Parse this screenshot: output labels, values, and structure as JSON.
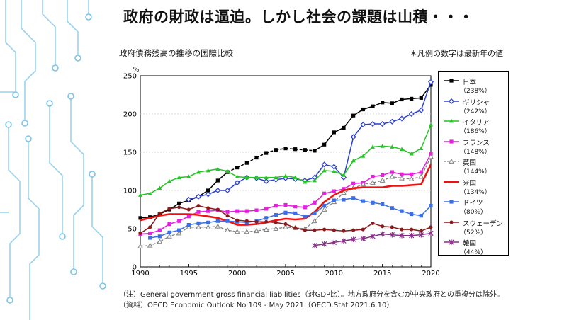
{
  "slide": {
    "title": "政府の財政は逼迫。しかし社会の課題は山積・・・"
  },
  "chart_data": {
    "type": "line",
    "title": "政府債務残高の推移の国際比較",
    "note": "＊凡例の数字は最新年の値",
    "ylabel": "%",
    "ylim": [
      0,
      250
    ],
    "xlim": [
      1990,
      2020
    ],
    "yticks": [
      0,
      50,
      100,
      150,
      200,
      250
    ],
    "xticks": [
      1990,
      1995,
      2000,
      2005,
      2010,
      2015,
      2020
    ],
    "grid": true,
    "legend_position": "right",
    "series": [
      {
        "key": "japan",
        "name": "日本",
        "latest": "（238%）",
        "color": "#000000",
        "marker": "square",
        "style": "solid-dashed",
        "x": [
          1990,
          1991,
          1992,
          1993,
          1994,
          1995,
          1996,
          1997,
          1998,
          1999,
          2000,
          2001,
          2002,
          2003,
          2004,
          2005,
          2006,
          2007,
          2008,
          2009,
          2010,
          2011,
          2012,
          2013,
          2014,
          2015,
          2016,
          2017,
          2018,
          2019,
          2020
        ],
        "y": [
          64,
          65,
          69,
          75,
          83,
          87,
          92,
          100,
          113,
          124,
          130,
          136,
          143,
          149,
          153,
          155,
          154,
          153,
          152,
          160,
          176,
          182,
          198,
          206,
          210,
          215,
          214,
          219,
          220,
          221,
          238
        ]
      },
      {
        "key": "greece",
        "name": "ギリシャ",
        "latest": "（242%）",
        "color": "#2b3fd0",
        "marker": "diamond-open",
        "style": "solid",
        "x": [
          1995,
          1996,
          1997,
          1998,
          1999,
          2000,
          2001,
          2002,
          2003,
          2004,
          2005,
          2006,
          2007,
          2008,
          2009,
          2010,
          2011,
          2012,
          2013,
          2014,
          2015,
          2016,
          2017,
          2018,
          2019,
          2020
        ],
        "y": [
          88,
          92,
          95,
          100,
          100,
          110,
          117,
          116,
          112,
          114,
          116,
          115,
          113,
          117,
          134,
          131,
          117,
          170,
          186,
          187,
          187,
          190,
          194,
          200,
          205,
          242
        ]
      },
      {
        "key": "italy",
        "name": "イタリア",
        "latest": "（186%）",
        "color": "#27c427",
        "marker": "triangle",
        "style": "solid",
        "x": [
          1990,
          1991,
          1992,
          1993,
          1994,
          1995,
          1996,
          1997,
          1998,
          1999,
          2000,
          2001,
          2002,
          2003,
          2004,
          2005,
          2006,
          2007,
          2008,
          2009,
          2010,
          2011,
          2012,
          2013,
          2014,
          2015,
          2016,
          2017,
          2018,
          2019,
          2020
        ],
        "y": [
          94,
          96,
          103,
          112,
          117,
          118,
          124,
          126,
          128,
          125,
          118,
          117,
          117,
          117,
          117,
          119,
          117,
          111,
          113,
          126,
          125,
          120,
          139,
          145,
          157,
          158,
          157,
          154,
          148,
          155,
          186
        ]
      },
      {
        "key": "france",
        "name": "フランス",
        "latest": "（148%）",
        "color": "#e81fe0",
        "marker": "square",
        "style": "solid",
        "x": [
          1990,
          1991,
          1992,
          1993,
          1994,
          1995,
          1996,
          1997,
          1998,
          1999,
          2000,
          2001,
          2002,
          2003,
          2004,
          2005,
          2006,
          2007,
          2008,
          2009,
          2010,
          2011,
          2012,
          2013,
          2014,
          2015,
          2016,
          2017,
          2018,
          2019,
          2020
        ],
        "y": [
          43,
          44,
          48,
          56,
          60,
          66,
          72,
          73,
          74,
          72,
          73,
          73,
          74,
          76,
          80,
          81,
          79,
          78,
          84,
          96,
          99,
          102,
          109,
          110,
          118,
          120,
          124,
          121,
          121,
          124,
          148
        ]
      },
      {
        "key": "uk",
        "name": "英国",
        "latest": "（144%）",
        "color": "#808080",
        "marker": "triangle-open",
        "style": "dashed",
        "x": [
          1990,
          1991,
          1992,
          1993,
          1994,
          1995,
          1996,
          1997,
          1998,
          1999,
          2000,
          2001,
          2002,
          2003,
          2004,
          2005,
          2006,
          2007,
          2008,
          2009,
          2010,
          2011,
          2012,
          2013,
          2014,
          2015,
          2016,
          2017,
          2018,
          2019,
          2020
        ],
        "y": [
          27,
          28,
          33,
          40,
          44,
          52,
          52,
          52,
          53,
          48,
          46,
          46,
          47,
          49,
          50,
          52,
          51,
          50,
          60,
          75,
          85,
          97,
          103,
          108,
          110,
          113,
          118,
          116,
          115,
          118,
          144
        ]
      },
      {
        "key": "us",
        "name": "米国",
        "latest": "（134%）",
        "color": "#ee1111",
        "marker": "none",
        "style": "bold",
        "x": [
          1990,
          1991,
          1992,
          1993,
          1994,
          1995,
          1996,
          1997,
          1998,
          1999,
          2000,
          2001,
          2002,
          2003,
          2004,
          2005,
          2006,
          2007,
          2008,
          2009,
          2010,
          2011,
          2012,
          2013,
          2014,
          2015,
          2016,
          2017,
          2018,
          2019,
          2020
        ],
        "y": [
          61,
          64,
          67,
          69,
          69,
          69,
          68,
          66,
          64,
          60,
          55,
          55,
          56,
          58,
          61,
          63,
          62,
          63,
          72,
          85,
          94,
          100,
          103,
          104,
          104,
          104,
          106,
          106,
          107,
          108,
          134
        ]
      },
      {
        "key": "germany",
        "name": "ドイツ",
        "latest": "（80%）",
        "color": "#3c6fe6",
        "marker": "square",
        "style": "solid",
        "x": [
          1991,
          1992,
          1993,
          1994,
          1995,
          1996,
          1997,
          1998,
          1999,
          2000,
          2001,
          2002,
          2003,
          2004,
          2005,
          2006,
          2007,
          2008,
          2009,
          2010,
          2011,
          2012,
          2013,
          2014,
          2015,
          2016,
          2017,
          2018,
          2019,
          2020
        ],
        "y": [
          38,
          40,
          45,
          48,
          55,
          57,
          58,
          60,
          60,
          59,
          58,
          60,
          64,
          68,
          71,
          70,
          66,
          70,
          80,
          87,
          88,
          90,
          86,
          84,
          82,
          77,
          73,
          69,
          67,
          80
        ]
      },
      {
        "key": "sweden",
        "name": "スウェーデン",
        "latest": "（52%）",
        "color": "#8a1a1a",
        "marker": "circle",
        "style": "solid",
        "x": [
          1990,
          1991,
          1992,
          1993,
          1994,
          1995,
          1996,
          1997,
          1998,
          1999,
          2000,
          2001,
          2002,
          2003,
          2004,
          2005,
          2006,
          2007,
          2008,
          2009,
          2010,
          2011,
          2012,
          2013,
          2014,
          2015,
          2016,
          2017,
          2018,
          2019,
          2020
        ],
        "y": [
          44,
          52,
          70,
          76,
          78,
          75,
          80,
          77,
          75,
          67,
          61,
          60,
          59,
          59,
          58,
          56,
          51,
          48,
          48,
          49,
          48,
          47,
          48,
          49,
          57,
          53,
          52,
          49,
          49,
          47,
          52
        ]
      },
      {
        "key": "korea",
        "name": "韓国",
        "latest": "（44%）",
        "color": "#8a2d8a",
        "marker": "star",
        "style": "solid",
        "x": [
          2008,
          2009,
          2010,
          2011,
          2012,
          2013,
          2014,
          2015,
          2016,
          2017,
          2018,
          2019,
          2020
        ],
        "y": [
          28,
          30,
          32,
          34,
          36,
          37,
          40,
          43,
          42,
          41,
          41,
          42,
          44
        ]
      }
    ]
  },
  "footnotes": [
    "（注）General government gross financial liabilities（対GDP比）。地方政府分を含むが中央政府との重複分は除外。",
    "（資料）OECD Economic Outlook No 109 - May 2021（OECD.Stat 2021.6.10）"
  ]
}
